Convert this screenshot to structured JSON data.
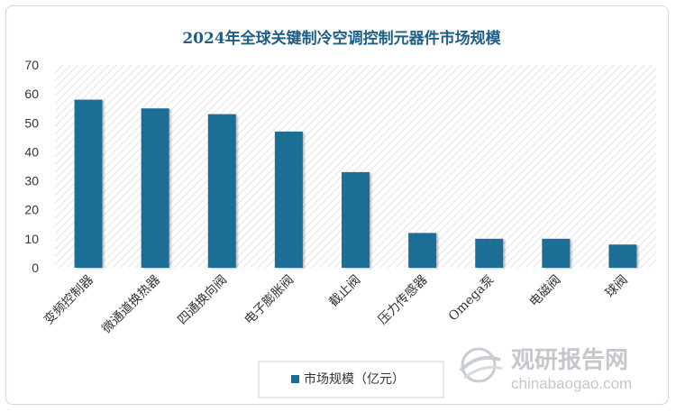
{
  "chart_data": {
    "type": "bar",
    "title": "2024年全球关键制冷空调控制元器件市场规模",
    "categories": [
      "变频控制器",
      "微通道换热器",
      "四通换向阀",
      "电子膨胀阀",
      "截止阀",
      "压力传感器",
      "Omega泵",
      "电磁阀",
      "球阀"
    ],
    "series": [
      {
        "name": "市场规模（亿元）",
        "values": [
          58,
          55,
          53,
          47,
          33,
          12,
          10,
          10,
          8
        ]
      }
    ],
    "ylim": [
      0,
      70
    ],
    "yticks": [
      0,
      10,
      20,
      30,
      40,
      50,
      60,
      70
    ],
    "grid": false,
    "legend_position": "bottom",
    "colors": {
      "bar": "#1b6e97",
      "title": "#1f5f86",
      "plot_hatch": "#e6e6e6"
    }
  },
  "watermark": {
    "text_cn": "观研报告网",
    "text_en": "chinabaogao.com",
    "icon": "globe-swirl-icon"
  }
}
